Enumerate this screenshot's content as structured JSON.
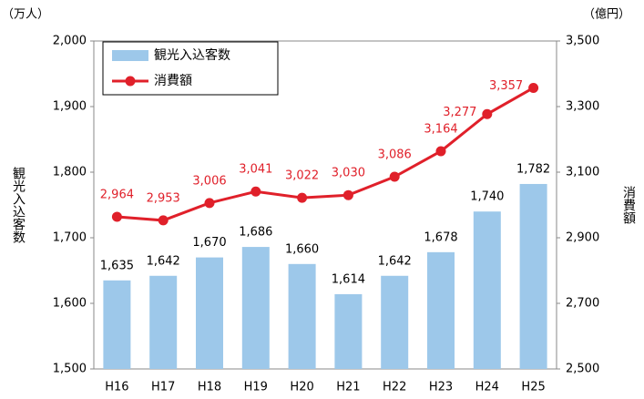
{
  "chart_data": {
    "type": "bar",
    "y_unit": "（万人）",
    "y2_unit": "（億円）",
    "ylabel": "観光入込客数",
    "y2label": "消費額",
    "categories": [
      "H16",
      "H17",
      "H18",
      "H19",
      "H20",
      "H21",
      "H22",
      "H23",
      "H24",
      "H25"
    ],
    "series": [
      {
        "name": "観光入込客数",
        "type": "bar",
        "color": "#9dc8ea",
        "values": [
          1635,
          1642,
          1670,
          1686,
          1660,
          1614,
          1642,
          1678,
          1740,
          1782
        ],
        "value_labels": [
          "1,635",
          "1,642",
          "1,670",
          "1,686",
          "1,660",
          "1,614",
          "1,642",
          "1,678",
          "1,740",
          "1,782"
        ]
      },
      {
        "name": "消費額",
        "type": "line",
        "axis": "y2",
        "color": "#e0202a",
        "values": [
          2964,
          2953,
          3006,
          3041,
          3022,
          3030,
          3086,
          3164,
          3277,
          3357
        ],
        "value_labels": [
          "2,964",
          "2,953",
          "3,006",
          "3,041",
          "3,022",
          "3,030",
          "3,086",
          "3,164",
          "3,277",
          "3,357"
        ]
      }
    ],
    "ylim": [
      1500,
      2000
    ],
    "yticks": [
      {
        "value": 1500,
        "label": "1,500"
      },
      {
        "value": 1600,
        "label": "1,600"
      },
      {
        "value": 1700,
        "label": "1,700"
      },
      {
        "value": 1800,
        "label": "1,800"
      },
      {
        "value": 1900,
        "label": "1,900"
      },
      {
        "value": 2000,
        "label": "2,000"
      }
    ],
    "y2lim": [
      2500,
      3500
    ],
    "y2ticks": [
      {
        "value": 2500,
        "label": "2,500"
      },
      {
        "value": 2700,
        "label": "2,700"
      },
      {
        "value": 2900,
        "label": "2,900"
      },
      {
        "value": 3100,
        "label": "3,100"
      },
      {
        "value": 3300,
        "label": "3,300"
      },
      {
        "value": 3500,
        "label": "3,500"
      }
    ],
    "legend": "upper left"
  }
}
